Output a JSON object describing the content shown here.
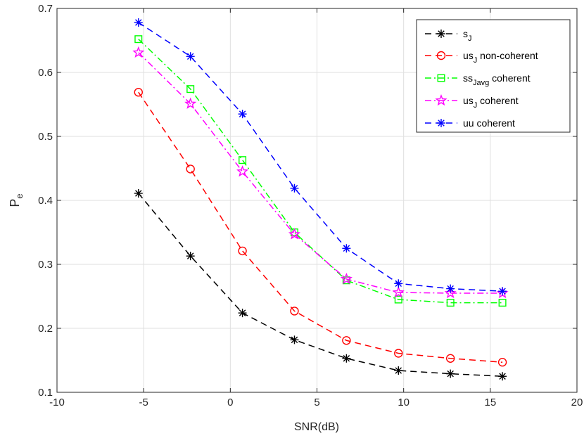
{
  "chart_data": {
    "type": "line",
    "title": "",
    "xlabel": "SNR(dB)",
    "ylabel": {
      "main": "P",
      "sub": "e"
    },
    "xlim": [
      -10,
      20
    ],
    "ylim": [
      0.1,
      0.7
    ],
    "xticks": [
      -10,
      -5,
      0,
      5,
      10,
      15,
      20
    ],
    "yticks": [
      0.1,
      0.2,
      0.3,
      0.4,
      0.5,
      0.6,
      0.7
    ],
    "xtick_labels": [
      "-10",
      "-5",
      "0",
      "5",
      "10",
      "15",
      "20"
    ],
    "ytick_labels": [
      "0.1",
      "0.2",
      "0.3",
      "0.4",
      "0.5",
      "0.6",
      "0.7"
    ],
    "grid": true,
    "legend_position": "top-right",
    "x": [
      -5.3,
      -2.3,
      0.7,
      3.7,
      6.7,
      9.7,
      12.7,
      15.7
    ],
    "series": [
      {
        "name": "s_J",
        "legend": {
          "main": "s",
          "sub": "J",
          "rest": ""
        },
        "color": "#000000",
        "dash": "dashed",
        "marker": "asterisk",
        "values": [
          0.411,
          0.313,
          0.224,
          0.182,
          0.153,
          0.134,
          0.129,
          0.125
        ]
      },
      {
        "name": "us_J non-coherent",
        "legend": {
          "main": "us",
          "sub": "J",
          "rest": " non-coherent"
        },
        "color": "#ff0000",
        "dash": "dashed",
        "marker": "circle",
        "values": [
          0.569,
          0.449,
          0.321,
          0.227,
          0.181,
          0.161,
          0.153,
          0.147
        ]
      },
      {
        "name": "ss_Javg coherent",
        "legend": {
          "main": "ss",
          "sub": "Javg",
          "rest": " coherent"
        },
        "color": "#00ff00",
        "dash": "dashdot",
        "marker": "square",
        "values": [
          0.652,
          0.574,
          0.463,
          0.35,
          0.275,
          0.245,
          0.24,
          0.24
        ]
      },
      {
        "name": "us_J coherent",
        "legend": {
          "main": "us",
          "sub": "J",
          "rest": " coherent"
        },
        "color": "#ff00ff",
        "dash": "dashdot",
        "marker": "star",
        "values": [
          0.631,
          0.551,
          0.445,
          0.347,
          0.277,
          0.256,
          0.255,
          0.255
        ]
      },
      {
        "name": "uu coherent",
        "legend": {
          "main": "uu coherent",
          "sub": "",
          "rest": ""
        },
        "color": "#0000ff",
        "dash": "dashed",
        "marker": "asterisk",
        "values": [
          0.678,
          0.625,
          0.535,
          0.419,
          0.325,
          0.27,
          0.262,
          0.258
        ]
      }
    ]
  }
}
